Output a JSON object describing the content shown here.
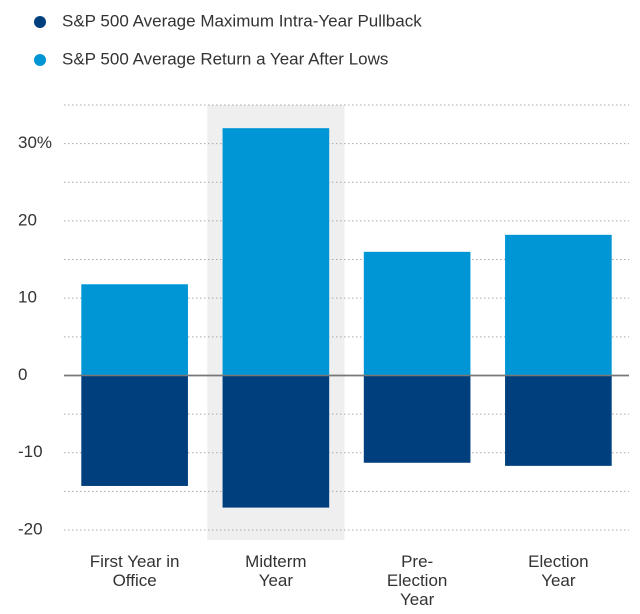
{
  "chart_data": {
    "type": "bar",
    "stacked": "diverging",
    "categories": [
      "First Year in Office",
      "Midterm Year",
      "Pre-Election Year",
      "Election Year"
    ],
    "series": [
      {
        "name": "S&P 500 Average Maximum Intra-Year Pullback",
        "color": "#003f7d",
        "values": [
          -14.3,
          -17.1,
          -11.3,
          -11.7
        ]
      },
      {
        "name": "S&P 500 Average Return a Year After Lows",
        "color": "#0096d6",
        "values": [
          11.8,
          32,
          16,
          18.2
        ]
      }
    ],
    "ylim": [
      -20,
      35
    ],
    "yticks": [
      -20,
      -10,
      0,
      10,
      20,
      {
        "value": 30,
        "label": "30%"
      }
    ],
    "minor_yticks": [
      -15,
      -5,
      5,
      15,
      25,
      35
    ],
    "grid": true,
    "highlight_category": "Midterm Year",
    "highlight_color": "#efefef"
  }
}
